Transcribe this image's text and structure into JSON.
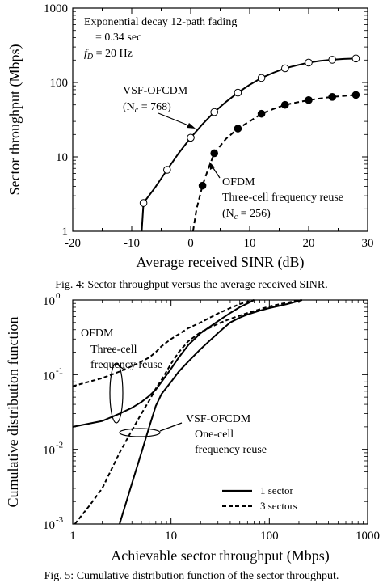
{
  "chart_data": [
    {
      "type": "line",
      "caption": "Fig. 4: Sector throughput versus the average received SINR.",
      "xlabel": "Average received SINR (dB)",
      "ylabel": "Sector throughput (Mbps)",
      "xlim": [
        -20,
        30
      ],
      "ylim": [
        1,
        1000
      ],
      "yscale": "log",
      "xticks": [
        "-20",
        "-10",
        "0",
        "10",
        "20",
        "30"
      ],
      "yticks": [
        "1",
        "10",
        "100",
        "1000"
      ],
      "annotations": {
        "cond1": "Exponential decay 12-path fading",
        "cond2": "= 0.34   sec",
        "cond3": "f",
        "cond3_sub": "D",
        "cond3_rest": " = 20 Hz",
        "vsf_l1": "VSF-OFCDM",
        "vsf_l2_a": "(N",
        "vsf_l2_sub": "c",
        "vsf_l2_b": " = 768)",
        "ofdm_l1": "OFDM",
        "ofdm_l2": "Three-cell frequency reuse",
        "ofdm_l3_a": "(N",
        "ofdm_l3_sub": "c",
        "ofdm_l3_b": " = 256)"
      },
      "series": [
        {
          "label": "VSF-OFCDM",
          "style": "solid",
          "marker": "open-circle",
          "x": [
            -8.3,
            -8,
            -6,
            -4,
            -2,
            0,
            2,
            4,
            6,
            8,
            10,
            12,
            14,
            16,
            18,
            20,
            22,
            24,
            26,
            28
          ],
          "y": [
            1.0,
            2.4,
            3.9,
            6.7,
            11.3,
            18.1,
            27.5,
            40,
            55,
            73,
            93,
            115,
            135,
            155,
            170,
            185,
            195,
            202,
            207,
            210
          ]
        },
        {
          "label": "OFDM",
          "style": "dashed",
          "marker": "filled-circle",
          "x": [
            0.4,
            1,
            2,
            3,
            4,
            6,
            8,
            10,
            12,
            14,
            16,
            18,
            20,
            22,
            24,
            26,
            28
          ],
          "y": [
            1.0,
            2.0,
            4.1,
            7,
            11.2,
            17.5,
            24,
            30,
            38,
            44,
            50,
            54,
            58,
            61,
            64,
            66,
            68
          ]
        }
      ],
      "markers_at_x": [
        -8,
        -4,
        0,
        4,
        8,
        12,
        16,
        20,
        24,
        28
      ],
      "ofdm_markers_at_x": [
        2,
        4,
        8,
        12,
        16,
        20,
        24,
        28
      ]
    },
    {
      "type": "line",
      "caption": "Fig. 5: Cumulative distribution function of the sector throughput.",
      "xlabel": "Achievable sector throughput (Mbps)",
      "ylabel": "Cumulative distribution function",
      "xlim": [
        1,
        1000
      ],
      "ylim": [
        0.001,
        1
      ],
      "xscale": "log",
      "yscale": "log",
      "xticks": [
        "1",
        "10",
        "100",
        "1000"
      ],
      "ytick_base": "10",
      "ytick_exps": [
        "-3",
        "-2",
        "-1",
        "0"
      ],
      "annotations": {
        "ofdm_l1": "OFDM",
        "ofdm_l2": "Three-cell",
        "ofdm_l3": "frequency reuse",
        "vsf_l1": "VSF-OFCDM",
        "vsf_l2": "One-cell",
        "vsf_l3": "frequency reuse"
      },
      "legend": {
        "position": "bottom-right",
        "entries": [
          {
            "label": "1 sector",
            "style": "solid"
          },
          {
            "label": "3 sectors",
            "style": "dashed"
          }
        ]
      },
      "series": [
        {
          "group": "OFDM",
          "label": "1 sector",
          "style": "solid",
          "x": [
            1,
            2,
            3,
            4,
            5,
            6,
            7,
            8,
            10,
            12,
            15,
            20,
            30,
            40,
            50,
            60,
            70
          ],
          "y": [
            0.02,
            0.024,
            0.03,
            0.036,
            0.043,
            0.052,
            0.063,
            0.08,
            0.12,
            0.17,
            0.25,
            0.36,
            0.52,
            0.67,
            0.8,
            0.9,
            1.0
          ]
        },
        {
          "group": "OFDM",
          "label": "3 sectors",
          "style": "dashed",
          "x": [
            1,
            2,
            3,
            4,
            5,
            6,
            7,
            8,
            10,
            15,
            20,
            30,
            40,
            50,
            60,
            70
          ],
          "y": [
            0.07,
            0.09,
            0.11,
            0.13,
            0.15,
            0.17,
            0.2,
            0.24,
            0.3,
            0.42,
            0.5,
            0.66,
            0.78,
            0.88,
            0.95,
            1.0
          ]
        },
        {
          "group": "VSF-OFCDM",
          "label": "1 sector",
          "style": "solid",
          "x": [
            3.0,
            4,
            5,
            6,
            7,
            8,
            10,
            12,
            15,
            20,
            30,
            40,
            50,
            60,
            80,
            100,
            150,
            200,
            215
          ],
          "y": [
            0.001,
            0.0035,
            0.009,
            0.02,
            0.038,
            0.055,
            0.08,
            0.11,
            0.15,
            0.22,
            0.36,
            0.5,
            0.58,
            0.64,
            0.72,
            0.78,
            0.88,
            0.97,
            1.0
          ]
        },
        {
          "group": "VSF-OFCDM",
          "label": "3 sectors",
          "style": "dashed",
          "x": [
            1.05,
            1.5,
            2,
            2.5,
            3,
            4,
            5,
            6,
            7,
            8,
            10,
            12,
            15,
            20,
            30,
            40,
            60,
            80,
            100,
            150,
            210
          ],
          "y": [
            0.001,
            0.0018,
            0.003,
            0.0055,
            0.009,
            0.018,
            0.03,
            0.045,
            0.065,
            0.085,
            0.14,
            0.2,
            0.28,
            0.37,
            0.48,
            0.56,
            0.67,
            0.75,
            0.82,
            0.92,
            1.0
          ]
        }
      ]
    }
  ]
}
